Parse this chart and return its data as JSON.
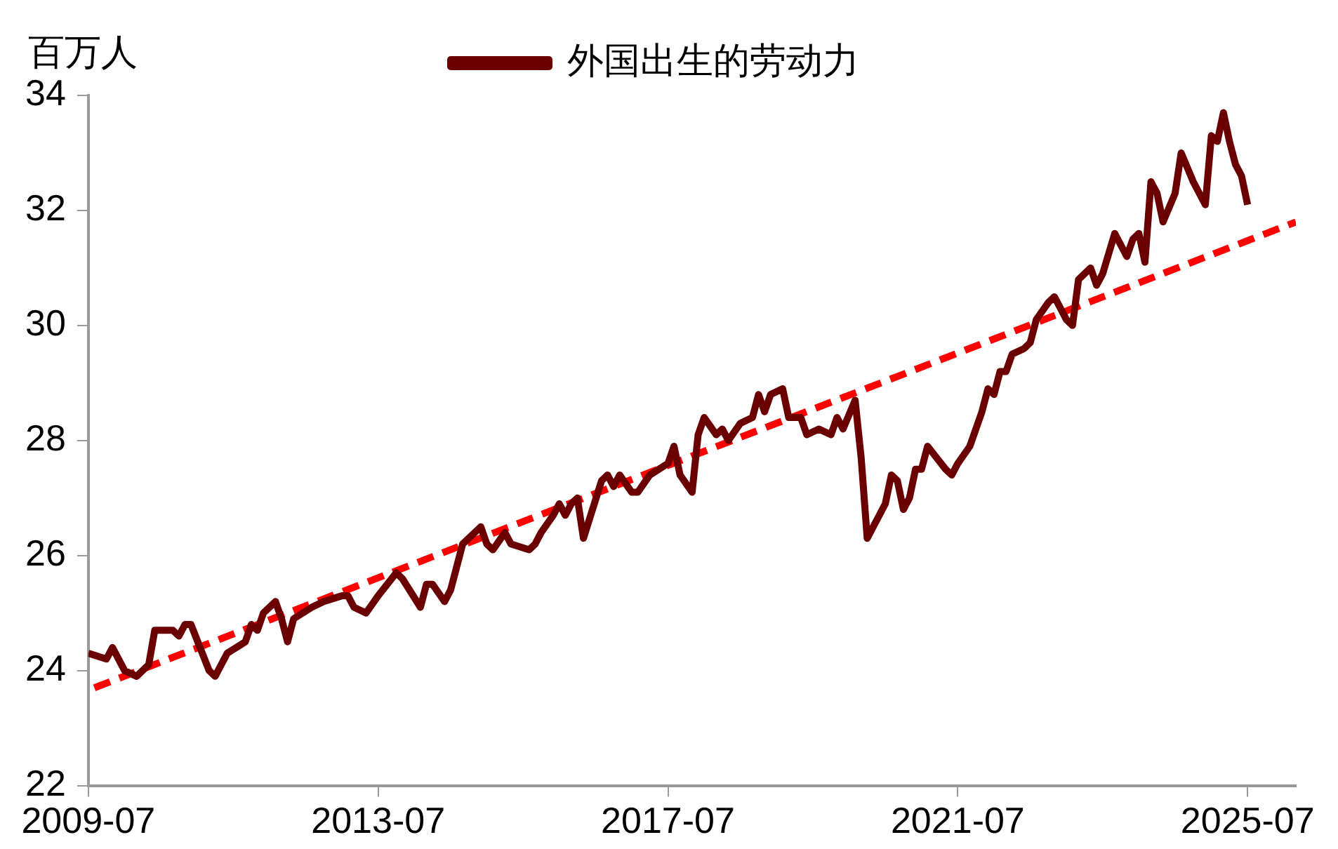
{
  "chart_data": {
    "type": "line",
    "ylabel": "百万人",
    "legend": "top",
    "grid": false,
    "marker": "none",
    "xlim": [
      "2009-07",
      "2026-03"
    ],
    "xticks": [
      "2009-07",
      "2013-07",
      "2017-07",
      "2021-07",
      "2025-07"
    ],
    "ylim": [
      22,
      34
    ],
    "yticks": [
      22,
      24,
      26,
      28,
      30,
      32,
      34
    ],
    "series": [
      {
        "name": "外国出生的劳动力",
        "color": "#6b0000",
        "line_style": "solid",
        "x": [
          "2009-07",
          "2009-10",
          "2009-11",
          "2010-01",
          "2010-03",
          "2010-05",
          "2010-06",
          "2010-09",
          "2010-10",
          "2010-11",
          "2010-12",
          "2011-03",
          "2011-04",
          "2011-06",
          "2011-09",
          "2011-10",
          "2011-11",
          "2011-12",
          "2012-02",
          "2012-03",
          "2012-04",
          "2012-05",
          "2012-08",
          "2012-10",
          "2013-01",
          "2013-02",
          "2013-03",
          "2013-05",
          "2013-07",
          "2013-10",
          "2013-11",
          "2014-02",
          "2014-03",
          "2014-04",
          "2014-06",
          "2014-07",
          "2014-08",
          "2014-09",
          "2014-12",
          "2015-01",
          "2015-02",
          "2015-04",
          "2015-05",
          "2015-08",
          "2015-09",
          "2015-10",
          "2015-12",
          "2016-01",
          "2016-02",
          "2016-03",
          "2016-04",
          "2016-05",
          "2016-08",
          "2016-09",
          "2016-10",
          "2016-11",
          "2017-01",
          "2017-02",
          "2017-04",
          "2017-07",
          "2017-08",
          "2017-09",
          "2017-11",
          "2017-12",
          "2018-01",
          "2018-03",
          "2018-04",
          "2018-05",
          "2018-07",
          "2018-09",
          "2018-10",
          "2018-11",
          "2018-12",
          "2019-02",
          "2019-03",
          "2019-05",
          "2019-06",
          "2019-08",
          "2019-10",
          "2019-11",
          "2019-12",
          "2020-02",
          "2020-03",
          "2020-04",
          "2020-07",
          "2020-08",
          "2020-09",
          "2020-10",
          "2020-11",
          "2020-12",
          "2021-01",
          "2021-02",
          "2021-05",
          "2021-06",
          "2021-07",
          "2021-09",
          "2021-11",
          "2021-12",
          "2022-01",
          "2022-02",
          "2022-03",
          "2022-04",
          "2022-06",
          "2022-07",
          "2022-08",
          "2022-10",
          "2022-11",
          "2023-01",
          "2023-02",
          "2023-03",
          "2023-05",
          "2023-06",
          "2023-07",
          "2023-09",
          "2023-11",
          "2023-12",
          "2024-01",
          "2024-02",
          "2024-03",
          "2024-04",
          "2024-05",
          "2024-07",
          "2024-08",
          "2024-10",
          "2024-12",
          "2025-01",
          "2025-02",
          "2025-03",
          "2025-04",
          "2025-05",
          "2025-06",
          "2025-07"
        ],
        "values": [
          24.3,
          24.2,
          24.4,
          24.0,
          23.9,
          24.1,
          24.7,
          24.7,
          24.6,
          24.8,
          24.8,
          24.0,
          23.9,
          24.3,
          24.5,
          24.8,
          24.7,
          25.0,
          25.2,
          24.9,
          24.5,
          24.9,
          25.1,
          25.2,
          25.3,
          25.3,
          25.1,
          25.0,
          25.3,
          25.7,
          25.6,
          25.1,
          25.5,
          25.5,
          25.2,
          25.4,
          25.8,
          26.2,
          26.5,
          26.2,
          26.1,
          26.4,
          26.2,
          26.1,
          26.2,
          26.4,
          26.7,
          26.9,
          26.7,
          26.9,
          27.0,
          26.3,
          27.3,
          27.4,
          27.2,
          27.4,
          27.1,
          27.1,
          27.4,
          27.6,
          27.9,
          27.4,
          27.1,
          28.1,
          28.4,
          28.1,
          28.2,
          28.0,
          28.3,
          28.4,
          28.8,
          28.5,
          28.8,
          28.9,
          28.4,
          28.4,
          28.1,
          28.2,
          28.1,
          28.4,
          28.2,
          28.7,
          27.7,
          26.3,
          26.9,
          27.4,
          27.3,
          26.8,
          27.0,
          27.5,
          27.5,
          27.9,
          27.5,
          27.4,
          27.6,
          27.9,
          28.5,
          28.9,
          28.8,
          29.2,
          29.2,
          29.5,
          29.6,
          29.7,
          30.1,
          30.4,
          30.5,
          30.1,
          30.0,
          30.8,
          31.0,
          30.7,
          30.9,
          31.6,
          31.2,
          31.5,
          31.6,
          31.1,
          32.5,
          32.3,
          31.8,
          32.3,
          33.0,
          32.5,
          32.1,
          33.3,
          33.2,
          33.7,
          33.2,
          32.8,
          32.6,
          32.1
        ]
      },
      {
        "color": "#ff0000",
        "line_style": "dashed",
        "x": [
          "2009-08",
          "2026-03"
        ],
        "values": [
          23.7,
          31.8
        ]
      }
    ]
  }
}
